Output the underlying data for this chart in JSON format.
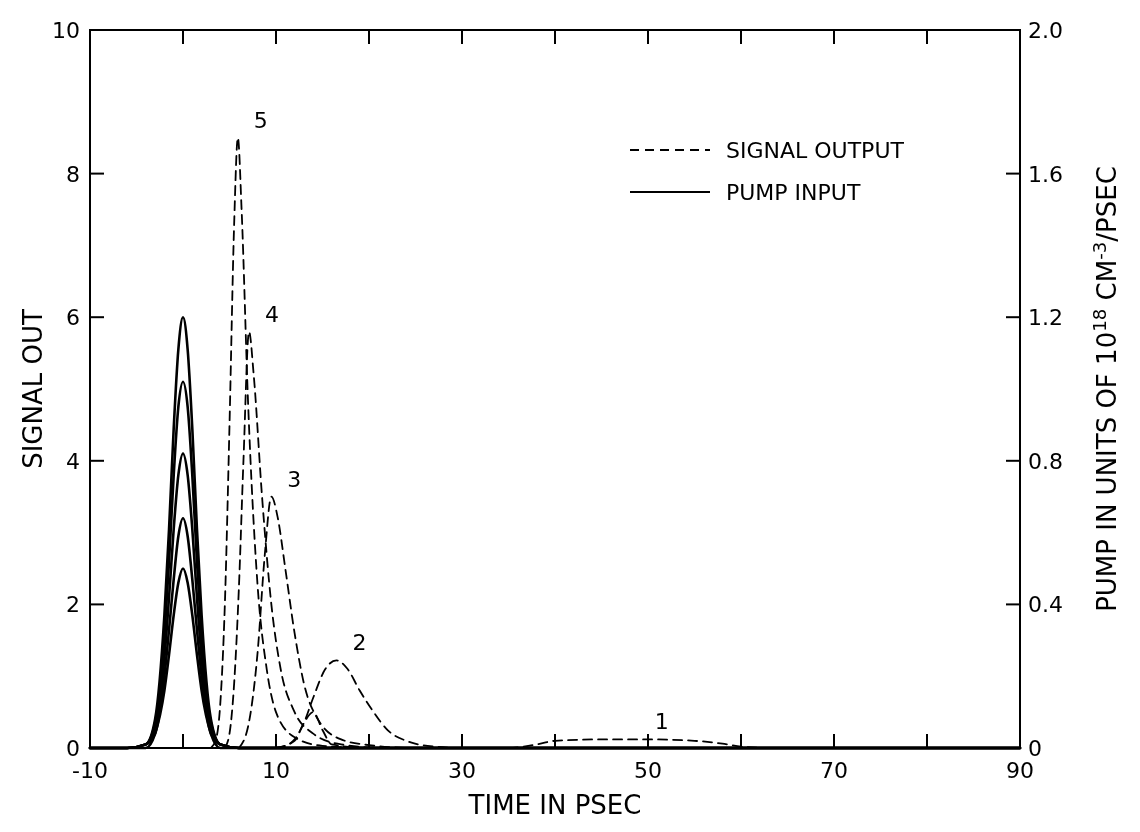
{
  "chart_data": {
    "type": "line",
    "xlabel": "TIME IN PSEC",
    "ylabel": "SIGNAL OUT",
    "y2label": "PUMP IN UNITS OF 10$^{18}$ CM$^{-3}$/PSEC",
    "xlim": [
      -10,
      90
    ],
    "xticks": [
      -10,
      {
        "value": 0,
        "label": null
      },
      10,
      {
        "value": 20,
        "label": null
      },
      30,
      {
        "value": 40,
        "label": null
      },
      50,
      {
        "value": 60,
        "label": null
      },
      70,
      {
        "value": 80,
        "label": null
      },
      90
    ],
    "ylim": [
      0,
      10
    ],
    "yticks": [
      0,
      2,
      4,
      6,
      8,
      10
    ],
    "y2lim": [
      0,
      2
    ],
    "y2ticks": [
      0,
      0.4,
      0.8,
      1.2,
      1.6,
      {
        "value": 2,
        "label": "2.0"
      }
    ],
    "grid": false,
    "legend": "top right",
    "annotations": [
      {
        "text": "5",
        "x": 5.9,
        "y": 8.5
      },
      {
        "text": "4",
        "x": 7.1,
        "y": 5.8
      },
      {
        "text": "3",
        "x": 9.5,
        "y": 3.5
      },
      {
        "text": "2",
        "x": 16.5,
        "y": 1.22
      },
      {
        "text": "1",
        "x": 49,
        "y": 0.12
      }
    ],
    "series": [
      {
        "name": "SIGNAL OUTPUT",
        "color": "#000000",
        "line_style": "dashed",
        "axis": "y",
        "x": [
          3,
          3.5,
          4,
          4.5,
          5,
          5.5,
          5.9,
          6.3,
          7,
          8,
          9,
          10,
          12,
          15,
          20,
          90
        ],
        "values": [
          0,
          0.1,
          0.6,
          2,
          4.5,
          7.3,
          8.5,
          7.5,
          4.8,
          2.3,
          1.1,
          0.5,
          0.15,
          0.03,
          0,
          0
        ]
      },
      {
        "color": "#000000",
        "line_style": "dashed",
        "axis": "y",
        "x": [
          4.5,
          5,
          5.5,
          6,
          6.5,
          7.1,
          7.6,
          8.5,
          9.5,
          10.5,
          12,
          14,
          17,
          22,
          90
        ],
        "values": [
          0,
          0.2,
          0.9,
          2.2,
          4,
          5.8,
          5.2,
          3.5,
          2,
          1.1,
          0.5,
          0.2,
          0.05,
          0,
          0
        ]
      },
      {
        "color": "#000000",
        "line_style": "dashed",
        "axis": "y",
        "x": [
          6,
          7,
          8,
          8.8,
          9.5,
          10.2,
          11,
          12,
          13,
          14.5,
          17,
          20,
          25,
          90
        ],
        "values": [
          0,
          0.3,
          1.3,
          2.7,
          3.5,
          3.2,
          2.5,
          1.6,
          0.9,
          0.4,
          0.12,
          0.04,
          0,
          0
        ]
      },
      {
        "color": "#000000",
        "line_style": "dashed",
        "axis": "y",
        "x": [
          10,
          11,
          12,
          13,
          14,
          15.3,
          16.5,
          17.7,
          19,
          20.5,
          22,
          24,
          27,
          30,
          90
        ],
        "values": [
          0,
          0.03,
          0.12,
          0.35,
          0.7,
          1.1,
          1.22,
          1.1,
          0.8,
          0.5,
          0.25,
          0.1,
          0.02,
          0,
          0
        ]
      },
      {
        "color": "#000000",
        "line_style": "dashed",
        "axis": "y",
        "x": [
          10,
          12,
          13,
          14,
          15,
          16,
          20,
          35,
          38,
          40,
          45,
          50,
          55,
          58,
          60,
          63,
          90
        ],
        "values": [
          0,
          0.1,
          0.35,
          0.5,
          0.25,
          0.05,
          0,
          0,
          0.05,
          0.1,
          0.12,
          0.12,
          0.1,
          0.06,
          0.02,
          0,
          0
        ]
      },
      {
        "name": "PUMP INPUT",
        "color": "#000000",
        "line_style": "solid",
        "axis": "y2",
        "x": [
          -10,
          -6,
          -4,
          -3,
          -2,
          -1.5,
          -1,
          -0.5,
          0,
          0.5,
          1,
          1.5,
          2,
          3,
          4,
          6,
          90
        ],
        "values": [
          0,
          0,
          0.01,
          0.08,
          0.37,
          0.61,
          0.89,
          1.11,
          1.2,
          1.11,
          0.89,
          0.61,
          0.37,
          0.08,
          0.01,
          0,
          0
        ]
      },
      {
        "color": "#000000",
        "line_style": "solid",
        "axis": "y2",
        "x": [
          -10,
          -6,
          -4,
          -3,
          -2,
          -1.5,
          -1,
          -0.5,
          0,
          0.5,
          1,
          1.5,
          2,
          3,
          4,
          6,
          90
        ],
        "values": [
          0,
          0,
          0.01,
          0.07,
          0.31,
          0.52,
          0.76,
          0.95,
          1.02,
          0.95,
          0.76,
          0.52,
          0.31,
          0.07,
          0.01,
          0,
          0
        ]
      },
      {
        "color": "#000000",
        "line_style": "solid",
        "axis": "y2",
        "x": [
          -10,
          -6,
          -4,
          -3,
          -2,
          -1.5,
          -1,
          -0.5,
          0,
          0.5,
          1,
          1.5,
          2,
          3,
          4,
          6,
          90
        ],
        "values": [
          0,
          0,
          0.01,
          0.06,
          0.25,
          0.42,
          0.61,
          0.76,
          0.82,
          0.76,
          0.61,
          0.42,
          0.25,
          0.06,
          0.01,
          0,
          0
        ]
      },
      {
        "color": "#000000",
        "line_style": "solid",
        "axis": "y2",
        "x": [
          -10,
          -6,
          -4,
          -3,
          -2,
          -1.5,
          -1,
          -0.5,
          0,
          0.5,
          1,
          1.5,
          2,
          3,
          4,
          6,
          90
        ],
        "values": [
          0,
          0,
          0.01,
          0.04,
          0.2,
          0.33,
          0.47,
          0.59,
          0.64,
          0.59,
          0.47,
          0.33,
          0.2,
          0.04,
          0.01,
          0,
          0
        ]
      },
      {
        "color": "#000000",
        "line_style": "solid",
        "axis": "y2",
        "x": [
          -10,
          -6,
          -4,
          -3,
          -2,
          -1.5,
          -1,
          -0.5,
          0,
          0.5,
          1,
          1.5,
          2,
          3,
          4,
          6,
          90
        ],
        "values": [
          0,
          0,
          0,
          0.04,
          0.16,
          0.26,
          0.37,
          0.46,
          0.5,
          0.46,
          0.37,
          0.26,
          0.16,
          0.04,
          0,
          0,
          0
        ]
      }
    ]
  }
}
